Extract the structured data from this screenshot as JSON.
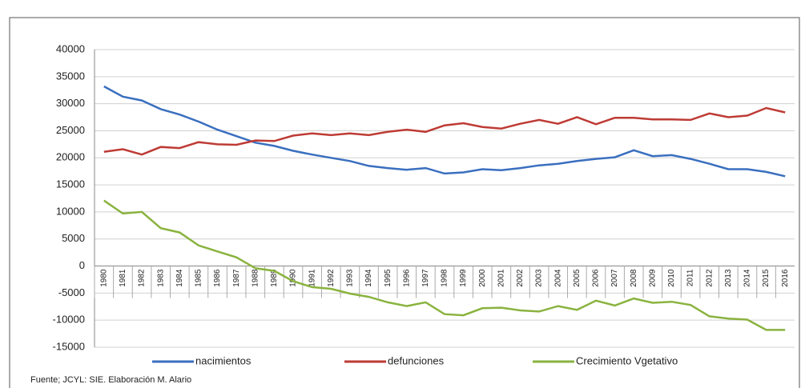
{
  "chart_data": {
    "type": "line",
    "categories": [
      "1980",
      "1981",
      "1982",
      "1983",
      "1984",
      "1985",
      "1986",
      "1987",
      "1988",
      "1989",
      "1990",
      "1991",
      "1992",
      "1993",
      "1994",
      "1995",
      "1996",
      "1997",
      "1998",
      "1999",
      "2000",
      "2001",
      "2002",
      "2003",
      "2004",
      "2005",
      "2006",
      "2007",
      "2008",
      "2009",
      "2010",
      "2011",
      "2012",
      "2013",
      "2014",
      "2015",
      "2016"
    ],
    "series": [
      {
        "name": "nacimientos",
        "color": "#3a6fbf",
        "values": [
          33200,
          31300,
          30600,
          29000,
          28000,
          26700,
          25200,
          24000,
          22800,
          22200,
          21300,
          20600,
          20000,
          19400,
          18500,
          18100,
          17800,
          18100,
          17100,
          17300,
          17900,
          17700,
          18100,
          18600,
          18900,
          19400,
          19800,
          20100,
          21400,
          20300,
          20500,
          19800,
          18900,
          17900,
          17900,
          17400,
          16600
        ]
      },
      {
        "name": "defunciones",
        "color": "#be3b35",
        "values": [
          21100,
          21600,
          20600,
          22000,
          21800,
          22900,
          22500,
          22400,
          23200,
          23100,
          24100,
          24500,
          24200,
          24500,
          24200,
          24800,
          25200,
          24800,
          26000,
          26400,
          25700,
          25400,
          26300,
          27000,
          26300,
          27500,
          26200,
          27400,
          27400,
          27100,
          27100,
          27000,
          28200,
          27500,
          27800,
          29200,
          28400
        ]
      },
      {
        "name": "Crecimiento Vgetativo",
        "color": "#8ab33f",
        "values": [
          12100,
          9700,
          10000,
          7000,
          6200,
          3800,
          2700,
          1600,
          -400,
          -900,
          -2800,
          -3900,
          -4200,
          -5100,
          -5700,
          -6700,
          -7400,
          -6700,
          -8900,
          -9100,
          -7800,
          -7700,
          -8200,
          -8400,
          -7400,
          -8100,
          -6400,
          -7300,
          -6000,
          -6800,
          -6600,
          -7200,
          -9300,
          -9700,
          -9900,
          -11800,
          -11800
        ]
      }
    ],
    "ylim": [
      -15000,
      40000
    ],
    "yticks": [
      -15000,
      -10000,
      -5000,
      0,
      5000,
      10000,
      15000,
      20000,
      25000,
      30000,
      35000,
      40000
    ],
    "grid": true,
    "source": "Fuente; JCYL: SIE. Elaboración M. Alario"
  }
}
